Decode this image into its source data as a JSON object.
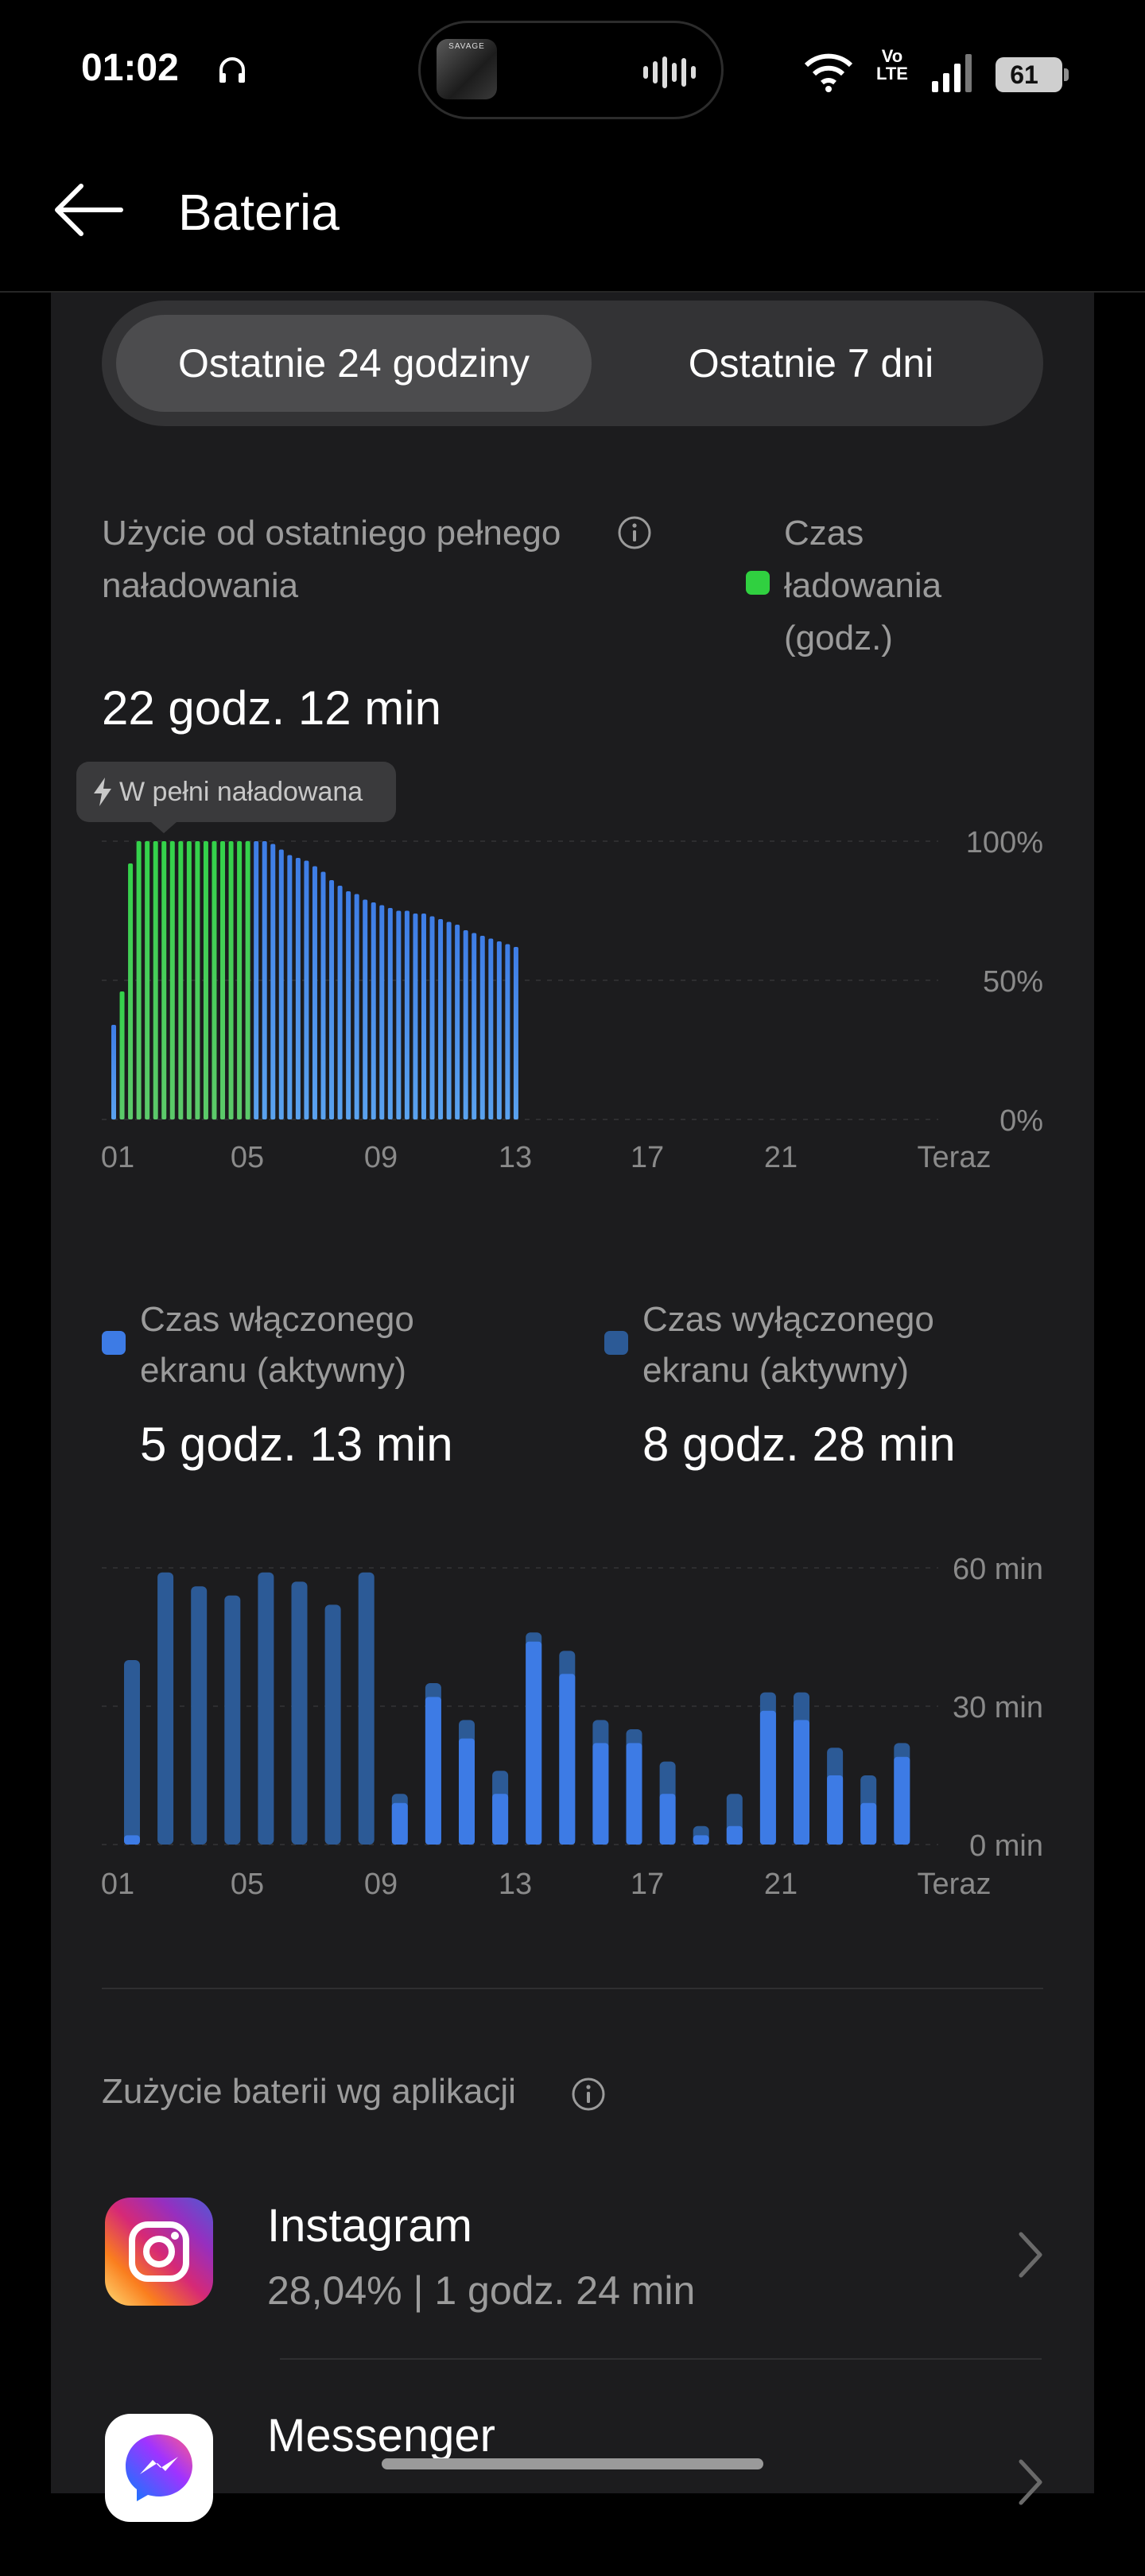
{
  "status_bar": {
    "time": "01:02",
    "battery_level": "61",
    "network": "VoLTE",
    "network_top": "Vo",
    "network_bottom": "LTE",
    "now_playing": {
      "album_text": "SAVAGE"
    },
    "icons": [
      "headphones-icon",
      "waveform-icon",
      "wifi-icon",
      "signal-icon",
      "battery-icon"
    ]
  },
  "header": {
    "title": "Bateria",
    "back_icon": "arrow-left-icon"
  },
  "segmented": {
    "options": [
      "Ostatnie 24 godziny",
      "Ostatnie 7 dni"
    ],
    "selected": "Ostatnie 24 godziny"
  },
  "battery_section": {
    "label": "Użycie od ostatniego pełnego naładowania",
    "value": "22 godz. 12 min",
    "legend": "Czas ładowania (godz.)",
    "tooltip": "W pełni naładowana"
  },
  "screen_section": {
    "screen_on_label": "Czas włączonego ekranu (aktywny)",
    "screen_on_value": "5 godz. 13 min",
    "screen_off_label": "Czas wyłączonego ekranu (aktywny)",
    "screen_off_value": "8 godz. 28 min"
  },
  "apps": {
    "heading": "Zużycie baterii wg aplikacji",
    "items": [
      {
        "name": "Instagram",
        "stat": "28,04%  |  1 godz. 24 min"
      },
      {
        "name": "Messenger",
        "stat": ""
      }
    ]
  },
  "colors": {
    "charging": "#30d040",
    "battery_level": "#4a86e8",
    "screen_on": "#3d7be5",
    "screen_off": "#2c5a96",
    "background": "#000000",
    "card": "#1c1c1e"
  },
  "chart_data": [
    {
      "type": "bar",
      "x_ticks": [
        "01",
        "05",
        "09",
        "13",
        "17",
        "21",
        "Teraz"
      ],
      "y_ticks": [
        "100%",
        "50%",
        "0%"
      ],
      "ylim": [
        0,
        100
      ],
      "grid": true,
      "series": [
        {
          "name": "Czas ładowania (godz.)",
          "values": [
            null,
            46,
            92,
            100,
            100,
            100,
            100,
            100,
            100,
            100,
            100,
            100,
            100,
            100,
            100,
            100,
            100,
            null,
            null,
            null,
            null,
            null,
            null,
            null,
            null,
            null,
            null,
            null,
            null,
            null,
            null,
            null,
            null,
            null,
            null,
            null,
            null,
            null,
            null,
            null,
            null,
            null,
            null,
            null,
            null,
            null,
            null,
            null,
            null
          ]
        },
        {
          "values": [
            34,
            null,
            null,
            null,
            null,
            null,
            null,
            null,
            null,
            null,
            null,
            null,
            null,
            null,
            null,
            null,
            null,
            100,
            100,
            99,
            97,
            95,
            94,
            93,
            91,
            89,
            86,
            84,
            82,
            81,
            79,
            78,
            77,
            76,
            75,
            75,
            74,
            74,
            73,
            72,
            71,
            70,
            68,
            67,
            66,
            65,
            64,
            63,
            62
          ]
        }
      ]
    },
    {
      "type": "bar",
      "stacked": true,
      "x_ticks": [
        "01",
        "05",
        "09",
        "13",
        "17",
        "21",
        "Teraz"
      ],
      "y_ticks": [
        "60 min",
        "30 min",
        "0 min"
      ],
      "ylim": [
        0,
        60
      ],
      "grid": true,
      "series": [
        {
          "name": "Czas włączonego ekranu (aktywny)",
          "values": [
            2,
            0,
            0,
            0,
            0,
            0,
            0,
            0,
            9,
            32,
            23,
            11,
            44,
            37,
            22,
            22,
            11,
            2,
            4,
            29,
            27,
            15,
            9,
            19
          ]
        },
        {
          "name": "Czas wyłączonego ekranu (aktywny)",
          "values": [
            38,
            59,
            56,
            54,
            59,
            57,
            52,
            59,
            2,
            3,
            4,
            5,
            2,
            5,
            5,
            3,
            7,
            2,
            7,
            4,
            6,
            6,
            6,
            3
          ]
        }
      ]
    }
  ]
}
